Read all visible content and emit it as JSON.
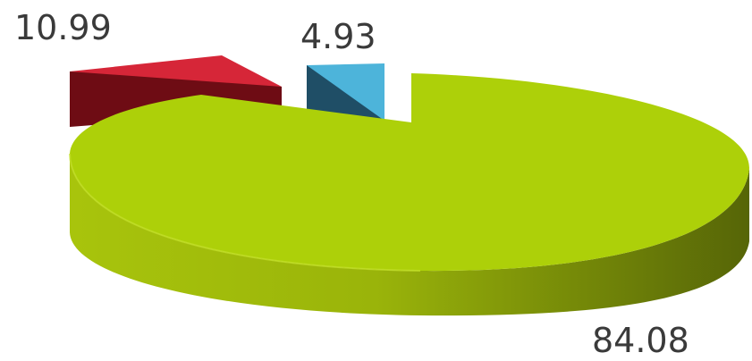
{
  "chart_data": {
    "type": "pie",
    "style": "3d-exploded",
    "legend": "none",
    "slices": [
      {
        "label": "84.08",
        "value": 84.08,
        "color": "#a9c80d"
      },
      {
        "label": "10.99",
        "value": 10.99,
        "color": "#d62638"
      },
      {
        "label": "4.93",
        "value": 4.93,
        "color": "#4db4da"
      }
    ]
  }
}
